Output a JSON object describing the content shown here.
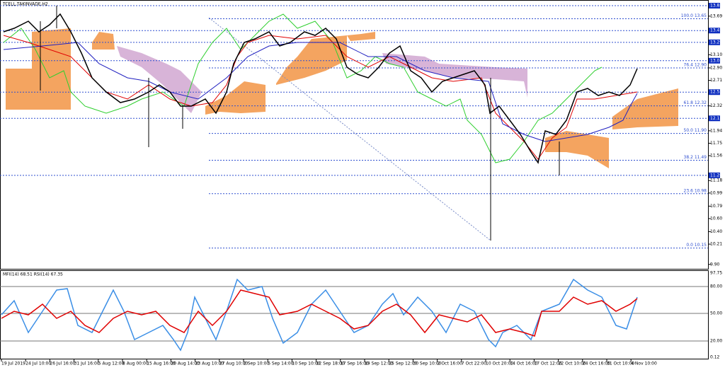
{
  "window_title": "TCELL,TAKINVADE,H2",
  "price_axis": [
    {
      "label": "13.85",
      "highlighted": true
    },
    {
      "label": "13.69",
      "highlighted": false
    },
    {
      "label": "13.47",
      "highlighted": true
    },
    {
      "label": "13.29",
      "highlighted": true
    },
    {
      "label": "13.10",
      "highlighted": false
    },
    {
      "label": "13.01",
      "highlighted": true
    },
    {
      "label": "12.90",
      "highlighted": false
    },
    {
      "label": "12.71",
      "highlighted": false
    },
    {
      "label": "12.53",
      "highlighted": true
    },
    {
      "label": "12.32",
      "highlighted": false
    },
    {
      "label": "12.13",
      "highlighted": true
    },
    {
      "label": "11.94",
      "highlighted": false
    },
    {
      "label": "11.75",
      "highlighted": false
    },
    {
      "label": "11.56",
      "highlighted": false
    },
    {
      "label": "11.26",
      "highlighted": true
    },
    {
      "label": "11.18",
      "highlighted": false
    },
    {
      "label": "10.99",
      "highlighted": false
    },
    {
      "label": "10.79",
      "highlighted": false
    },
    {
      "label": "10.60",
      "highlighted": false
    },
    {
      "label": "10.40",
      "highlighted": false
    },
    {
      "label": "10.21",
      "highlighted": false
    },
    {
      "label": "9.90",
      "highlighted": false
    }
  ],
  "fib_levels": [
    "100.0 13.65",
    "76.4 12.90",
    "61.8 12.32",
    "50.0 11.90",
    "38.2 11.49",
    "23.6 10.98",
    "0.0 10.15"
  ],
  "indicator": {
    "label": "MFI(14) 68.51 RSI(14) 67.35",
    "axis": [
      "97.75",
      "80.00",
      "50.00",
      "20.00",
      "0.12"
    ]
  },
  "time_axis": [
    "19 Jul 2019",
    "24 Jul 10:00",
    "26 Jul 16:00",
    "31 Jul 16:00",
    "5 Aug 12:00",
    "8 Aug 00:00",
    "15 Aug 16:00",
    "20 Aug 14:00",
    "23 Aug 10:00",
    "27 Aug 10:00",
    "2 Sep 10:00",
    "5 Sep 14:00",
    "10 Sep 10:00",
    "12 Sep 18:00",
    "17 Sep 16:00",
    "19 Sep 12:00",
    "25 Sep 12:00",
    "30 Sep 10:00",
    "2 Oct 16:00",
    "7 Oct 22:00",
    "10 Oct 20:00",
    "14 Oct 16:00",
    "17 Oct 12:00",
    "22 Oct 10:00",
    "24 Oct 16:00",
    "31 Oct 10:00",
    "4 Nov 10:00"
  ]
}
